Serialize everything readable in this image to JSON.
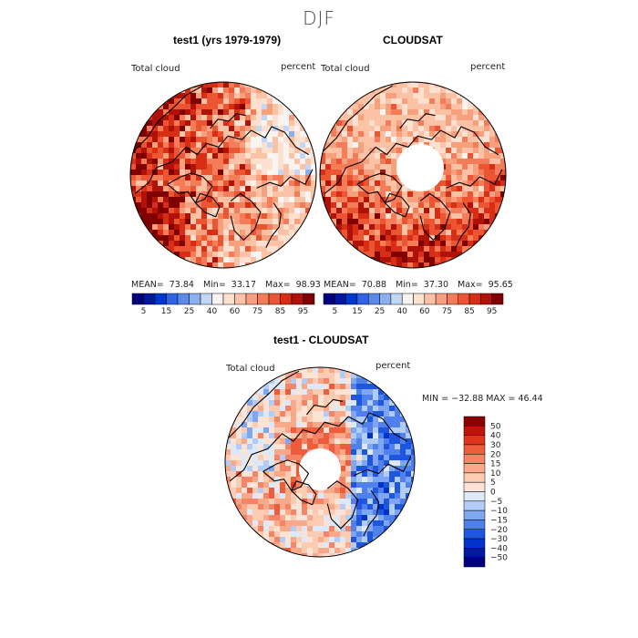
{
  "figure": {
    "season": "DJF"
  },
  "colors": {
    "abs_scale": [
      "#00007f",
      "#00189f",
      "#0037cf",
      "#2f63e6",
      "#5a8ae9",
      "#8ab0f0",
      "#c2d7f6",
      "#f8f4f1",
      "#fde0d0",
      "#fbc2a5",
      "#f7a07e",
      "#f47c59",
      "#ec5532",
      "#d92e16",
      "#b0120a",
      "#800000"
    ],
    "diff_scale": [
      "#00007f",
      "#0018a8",
      "#0033cc",
      "#1f56e0",
      "#4f80ec",
      "#7ea6f3",
      "#b1ccf7",
      "#dde8f9",
      "#fbe4d6",
      "#fccbb2",
      "#f9a98a",
      "#f48465",
      "#ee5c3c",
      "#e0351d",
      "#bd150c",
      "#8b0000"
    ],
    "coast": "#000000"
  },
  "chart_data": [
    {
      "type": "heatmap",
      "title": "test1 (yrs 1979-1979)",
      "variable": "Total cloud",
      "units": "percent",
      "stats": {
        "mean_label": "MEAN=",
        "mean": "73.84",
        "min_label": "Min=",
        "min": "33.17",
        "max_label": "Max=",
        "max": "98.93"
      },
      "colorbar_ticks": [
        "5",
        "15",
        "25",
        "40",
        "60",
        "75",
        "85",
        "95"
      ],
      "projection": "north polar stereographic"
    },
    {
      "type": "heatmap",
      "title": "CLOUDSAT",
      "variable": "Total cloud",
      "units": "percent",
      "stats": {
        "mean_label": "MEAN=",
        "mean": "70.88",
        "min_label": "Min=",
        "min": "37.30",
        "max_label": "Max=",
        "max": "95.65"
      },
      "colorbar_ticks": [
        "5",
        "15",
        "25",
        "40",
        "60",
        "75",
        "85",
        "95"
      ],
      "projection": "north polar stereographic"
    },
    {
      "type": "heatmap",
      "title": "test1 - CLOUDSAT",
      "variable": "Total cloud",
      "units": "percent",
      "stats_text": "MIN = −32.88 MAX =  46.44",
      "colorbar_ticks": [
        "50",
        "40",
        "30",
        "20",
        "15",
        "10",
        "5",
        "0",
        "−5",
        "−10",
        "−15",
        "−20",
        "−30",
        "−40",
        "−50"
      ],
      "projection": "north polar stereographic"
    }
  ]
}
